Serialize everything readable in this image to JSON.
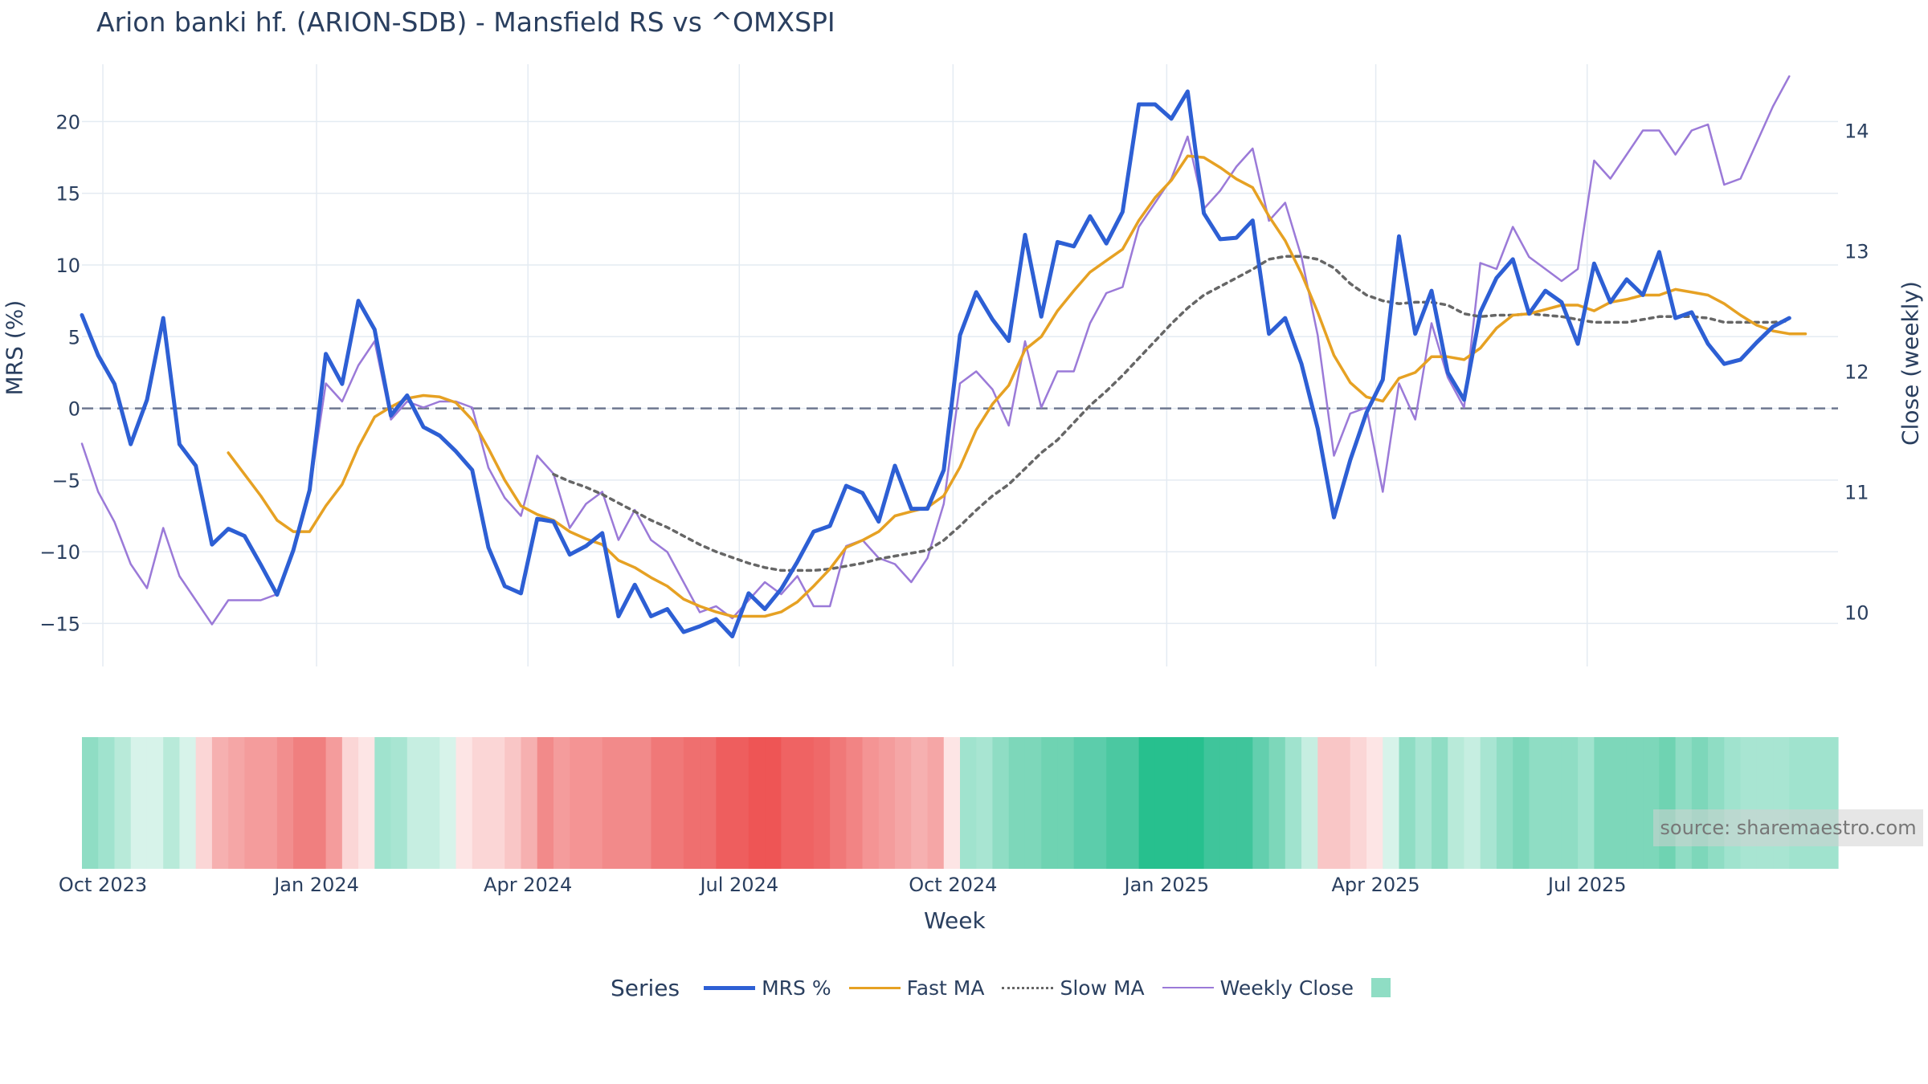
{
  "chart_data": {
    "type": "line",
    "title": "Arion banki hf. (ARION-SDB) - Mansfield RS vs ^OMXSPI",
    "xlabel": "Week",
    "ylabel_left": "MRS (%)",
    "ylabel_right": "Close (weekly)",
    "source": "source: sharemaestro.com",
    "legend_title": "Series",
    "ylim_left": [
      -18,
      24
    ],
    "ylim_right": [
      9.55,
      14.55
    ],
    "y_ticks_left": [
      -15,
      -10,
      -5,
      0,
      5,
      10,
      15,
      20
    ],
    "y_tick_labels_left": [
      "−15",
      "−10",
      "−5",
      "0",
      "5",
      "10",
      "15",
      "20"
    ],
    "y_ticks_right": [
      10,
      11,
      12,
      13,
      14
    ],
    "y_tick_labels_right": [
      "10",
      "11",
      "12",
      "13",
      "14"
    ],
    "x_start": "2023-09-22",
    "x_end": "2025-10-10",
    "x_ticks": [
      "2023-10-01",
      "2024-01-01",
      "2024-04-01",
      "2024-07-01",
      "2024-10-01",
      "2025-01-01",
      "2025-04-01",
      "2025-07-01"
    ],
    "x_tick_labels": [
      "Oct 2023",
      "Jan 2024",
      "Apr 2024",
      "Jul 2024",
      "Oct 2024",
      "Jan 2025",
      "Apr 2025",
      "Jul 2025"
    ],
    "reference_line": 0,
    "colors": {
      "mrs": "#2d5fd4",
      "fast": "#e6a123",
      "slow": "#666666",
      "close": "#9b7ad8",
      "zero": "#6e7890",
      "grid": "#e4ebf2",
      "pos": "#27c08e",
      "neg": "#ee5555"
    },
    "series": [
      {
        "name": "MRS %",
        "values": [
          6.5,
          3.7,
          1.7,
          -2.5,
          0.6,
          6.3,
          -2.5,
          -4.0,
          -9.5,
          -8.4,
          -8.9,
          -10.9,
          -13.0,
          -9.9,
          -5.7,
          3.8,
          1.7,
          7.5,
          5.5,
          -0.5,
          0.9,
          -1.3,
          -1.9,
          -3.0,
          -4.3,
          -9.7,
          -12.4,
          -12.9,
          -7.7,
          -7.9,
          -10.2,
          -9.6,
          -8.7,
          -14.5,
          -12.3,
          -14.5,
          -14.0,
          -15.6,
          -15.2,
          -14.7,
          -15.9,
          -12.9,
          -14.0,
          -12.6,
          -10.7,
          -8.6,
          -8.2,
          -5.4,
          -5.9,
          -7.9,
          -4.0,
          -7.0,
          -7.0,
          -4.3,
          5.1,
          8.1,
          6.2,
          4.7,
          12.1,
          6.4,
          11.6,
          11.3,
          13.4,
          11.5,
          13.7,
          21.2,
          21.2,
          20.2,
          22.1,
          13.6,
          11.8,
          11.9,
          13.1,
          5.2,
          6.3,
          3.1,
          -1.4,
          -7.6,
          -3.6,
          -0.3,
          2.0,
          12.0,
          5.2,
          8.2,
          2.5,
          0.6,
          6.7,
          9.1,
          10.4,
          6.6,
          8.2,
          7.4,
          4.5,
          10.1,
          7.4,
          9.0,
          7.9,
          10.9,
          6.3,
          6.7,
          4.5,
          3.1,
          3.4,
          4.6,
          5.7,
          6.3
        ]
      },
      {
        "name": "Fast MA",
        "values": [
          null,
          null,
          null,
          null,
          null,
          null,
          null,
          null,
          null,
          -3.1,
          -4.6,
          -6.1,
          -7.8,
          -8.6,
          -8.6,
          -6.8,
          -5.3,
          -2.7,
          -0.6,
          0.1,
          0.7,
          0.9,
          0.8,
          0.4,
          -0.8,
          -2.8,
          -5.0,
          -6.8,
          -7.4,
          -7.8,
          -8.6,
          -9.1,
          -9.5,
          -10.6,
          -11.1,
          -11.8,
          -12.4,
          -13.3,
          -13.8,
          -14.2,
          -14.5,
          -14.5,
          -14.5,
          -14.2,
          -13.5,
          -12.4,
          -11.2,
          -9.7,
          -9.2,
          -8.6,
          -7.5,
          -7.2,
          -6.9,
          -6.1,
          -4.1,
          -1.5,
          0.3,
          1.6,
          4.1,
          5.0,
          6.8,
          8.2,
          9.5,
          10.3,
          11.1,
          13.1,
          14.7,
          15.9,
          17.6,
          17.5,
          16.8,
          16.0,
          15.4,
          13.4,
          11.7,
          9.4,
          6.7,
          3.7,
          1.8,
          0.8,
          0.5,
          2.1,
          2.5,
          3.6,
          3.6,
          3.4,
          4.2,
          5.6,
          6.5,
          6.6,
          6.9,
          7.2,
          7.2,
          6.8,
          7.4,
          7.6,
          7.9,
          7.9,
          8.3,
          8.1,
          7.9,
          7.3,
          6.5,
          5.8,
          5.4,
          5.2,
          5.2
        ]
      },
      {
        "name": "Slow MA",
        "values": [
          null,
          null,
          null,
          null,
          null,
          null,
          null,
          null,
          null,
          null,
          null,
          null,
          null,
          null,
          null,
          null,
          null,
          null,
          null,
          null,
          null,
          null,
          null,
          null,
          null,
          null,
          null,
          null,
          null,
          -4.6,
          -5.1,
          -5.5,
          -6.0,
          -6.6,
          -7.2,
          -7.8,
          -8.3,
          -8.9,
          -9.5,
          -10.0,
          -10.4,
          -10.8,
          -11.1,
          -11.3,
          -11.3,
          -11.3,
          -11.2,
          -11.0,
          -10.8,
          -10.5,
          -10.3,
          -10.1,
          -9.9,
          -9.2,
          -8.2,
          -7.1,
          -6.1,
          -5.3,
          -4.2,
          -3.1,
          -2.2,
          -1.0,
          0.2,
          1.2,
          2.3,
          3.5,
          4.7,
          5.9,
          7.0,
          7.9,
          8.5,
          9.1,
          9.7,
          10.4,
          10.6,
          10.6,
          10.4,
          9.8,
          8.7,
          7.9,
          7.5,
          7.3,
          7.4,
          7.4,
          7.2,
          6.6,
          6.4,
          6.5,
          6.5,
          6.6,
          6.5,
          6.4,
          6.2,
          6.0,
          6.0,
          6.0,
          6.2,
          6.4,
          6.4,
          6.4,
          6.3,
          6.0,
          6.0,
          6.0,
          6.0,
          6.1
        ]
      },
      {
        "name": "Weekly Close",
        "values": [
          11.4,
          11.0,
          10.75,
          10.4,
          10.2,
          10.7,
          10.3,
          10.1,
          9.9,
          10.1,
          10.1,
          10.1,
          10.15,
          10.5,
          11.0,
          11.9,
          11.75,
          12.05,
          12.25,
          11.6,
          11.75,
          11.7,
          11.75,
          11.75,
          11.7,
          11.2,
          10.95,
          10.8,
          11.3,
          11.15,
          10.7,
          10.9,
          11.0,
          10.6,
          10.85,
          10.6,
          10.5,
          10.25,
          10.0,
          10.05,
          9.95,
          10.1,
          10.25,
          10.15,
          10.3,
          10.05,
          10.05,
          10.55,
          10.6,
          10.45,
          10.4,
          10.25,
          10.45,
          10.9,
          11.9,
          12.0,
          11.85,
          11.55,
          12.25,
          11.7,
          12.0,
          12.0,
          12.4,
          12.65,
          12.7,
          13.2,
          13.4,
          13.6,
          13.95,
          13.35,
          13.5,
          13.7,
          13.85,
          13.25,
          13.4,
          12.95,
          12.3,
          11.3,
          11.65,
          11.7,
          11.0,
          11.9,
          11.6,
          12.4,
          11.95,
          11.7,
          12.9,
          12.85,
          13.2,
          12.95,
          12.85,
          12.75,
          12.85,
          13.75,
          13.6,
          13.8,
          14.0,
          14.0,
          13.8,
          14.0,
          14.05,
          13.55,
          13.6,
          13.9,
          14.2,
          14.45
        ]
      }
    ],
    "heatmap_cells": [
      {
        "start": "2023-09-22",
        "color": "#8fddc4"
      },
      {
        "start": "2023-09-29",
        "color": "#a0e3ce"
      },
      {
        "start": "2023-10-06",
        "color": "#b8ead9"
      },
      {
        "start": "2023-10-13",
        "color": "#d7f3ea"
      },
      {
        "start": "2023-10-20",
        "color": "#d7f3ea"
      },
      {
        "start": "2023-10-27",
        "color": "#b8ead9"
      },
      {
        "start": "2023-11-03",
        "color": "#d7f3ea"
      },
      {
        "start": "2023-11-10",
        "color": "#fbd6d6"
      },
      {
        "start": "2023-11-17",
        "color": "#f6b0b0"
      },
      {
        "start": "2023-11-24",
        "color": "#f5a6a6"
      },
      {
        "start": "2023-12-01",
        "color": "#f49c9c"
      },
      {
        "start": "2023-12-08",
        "color": "#f49c9c"
      },
      {
        "start": "2023-12-15",
        "color": "#f28e8e"
      },
      {
        "start": "2023-12-22",
        "color": "#f07f7f"
      },
      {
        "start": "2023-12-29",
        "color": "#f07f7f"
      },
      {
        "start": "2024-01-05",
        "color": "#f49c9c"
      },
      {
        "start": "2024-01-12",
        "color": "#fbd6d6"
      },
      {
        "start": "2024-01-19",
        "color": "#fde5e5"
      },
      {
        "start": "2024-01-26",
        "color": "#a0e3ce"
      },
      {
        "start": "2024-02-02",
        "color": "#a8e5d2"
      },
      {
        "start": "2024-02-09",
        "color": "#c6eee1"
      },
      {
        "start": "2024-02-16",
        "color": "#c6eee1"
      },
      {
        "start": "2024-02-23",
        "color": "#d7f3ea"
      },
      {
        "start": "2024-03-01",
        "color": "#fde5e5"
      },
      {
        "start": "2024-03-08",
        "color": "#fbd6d6"
      },
      {
        "start": "2024-03-15",
        "color": "#fbd6d6"
      },
      {
        "start": "2024-03-22",
        "color": "#f9c6c6"
      },
      {
        "start": "2024-03-29",
        "color": "#f6b0b0"
      },
      {
        "start": "2024-04-05",
        "color": "#f28a8a"
      },
      {
        "start": "2024-04-12",
        "color": "#f49c9c"
      },
      {
        "start": "2024-04-19",
        "color": "#f49494"
      },
      {
        "start": "2024-04-26",
        "color": "#f49494"
      },
      {
        "start": "2024-05-03",
        "color": "#f28a8a"
      },
      {
        "start": "2024-05-10",
        "color": "#f28a8a"
      },
      {
        "start": "2024-05-17",
        "color": "#f28a8a"
      },
      {
        "start": "2024-05-24",
        "color": "#f07878"
      },
      {
        "start": "2024-05-31",
        "color": "#f07878"
      },
      {
        "start": "2024-06-07",
        "color": "#ef6f6f"
      },
      {
        "start": "2024-06-14",
        "color": "#ef6f6f"
      },
      {
        "start": "2024-06-21",
        "color": "#ee5e5e"
      },
      {
        "start": "2024-06-28",
        "color": "#ee5e5e"
      },
      {
        "start": "2024-07-05",
        "color": "#ee5555"
      },
      {
        "start": "2024-07-12",
        "color": "#ee5555"
      },
      {
        "start": "2024-07-19",
        "color": "#ef6363"
      },
      {
        "start": "2024-07-26",
        "color": "#ef6363"
      },
      {
        "start": "2024-08-02",
        "color": "#ef6969"
      },
      {
        "start": "2024-08-09",
        "color": "#f07878"
      },
      {
        "start": "2024-08-16",
        "color": "#f28484"
      },
      {
        "start": "2024-08-23",
        "color": "#f49494"
      },
      {
        "start": "2024-08-30",
        "color": "#f49c9c"
      },
      {
        "start": "2024-09-06",
        "color": "#f5a6a6"
      },
      {
        "start": "2024-09-13",
        "color": "#f6b0b0"
      },
      {
        "start": "2024-09-20",
        "color": "#f5a6a6"
      },
      {
        "start": "2024-09-27",
        "color": "#fde5e5"
      },
      {
        "start": "2024-10-04",
        "color": "#a0e3ce"
      },
      {
        "start": "2024-10-11",
        "color": "#a8e5d2"
      },
      {
        "start": "2024-10-18",
        "color": "#8fddc4"
      },
      {
        "start": "2024-10-25",
        "color": "#7dd7ba"
      },
      {
        "start": "2024-11-01",
        "color": "#7dd7ba"
      },
      {
        "start": "2024-11-08",
        "color": "#6fd3b2"
      },
      {
        "start": "2024-11-15",
        "color": "#6fd3b2"
      },
      {
        "start": "2024-11-22",
        "color": "#5ccdab"
      },
      {
        "start": "2024-11-29",
        "color": "#5ccdab"
      },
      {
        "start": "2024-12-06",
        "color": "#4bc8a1"
      },
      {
        "start": "2024-12-13",
        "color": "#4bc8a1"
      },
      {
        "start": "2024-12-20",
        "color": "#27c08e"
      },
      {
        "start": "2024-12-27",
        "color": "#27c08e"
      },
      {
        "start": "2025-01-03",
        "color": "#27c08e"
      },
      {
        "start": "2025-01-10",
        "color": "#27c08e"
      },
      {
        "start": "2025-01-17",
        "color": "#3fc59b"
      },
      {
        "start": "2025-01-24",
        "color": "#3fc59b"
      },
      {
        "start": "2025-01-31",
        "color": "#3fc59b"
      },
      {
        "start": "2025-02-07",
        "color": "#63cfae"
      },
      {
        "start": "2025-02-14",
        "color": "#7dd7ba"
      },
      {
        "start": "2025-02-21",
        "color": "#a0e3ce"
      },
      {
        "start": "2025-02-28",
        "color": "#c6eee1"
      },
      {
        "start": "2025-03-07",
        "color": "#f9c6c6"
      },
      {
        "start": "2025-03-14",
        "color": "#f9c6c6"
      },
      {
        "start": "2025-03-21",
        "color": "#fbd6d6"
      },
      {
        "start": "2025-03-28",
        "color": "#fde5e5"
      },
      {
        "start": "2025-04-04",
        "color": "#d7f3ea"
      },
      {
        "start": "2025-04-11",
        "color": "#8fddc4"
      },
      {
        "start": "2025-04-18",
        "color": "#a8e5d2"
      },
      {
        "start": "2025-04-25",
        "color": "#8fddc4"
      },
      {
        "start": "2025-05-02",
        "color": "#b8ead9"
      },
      {
        "start": "2025-05-09",
        "color": "#c6eee1"
      },
      {
        "start": "2025-05-16",
        "color": "#a8e5d2"
      },
      {
        "start": "2025-05-23",
        "color": "#8fddc4"
      },
      {
        "start": "2025-05-30",
        "color": "#7dd7ba"
      },
      {
        "start": "2025-06-06",
        "color": "#8fddc4"
      },
      {
        "start": "2025-06-13",
        "color": "#8fddc4"
      },
      {
        "start": "2025-06-20",
        "color": "#8fddc4"
      },
      {
        "start": "2025-06-27",
        "color": "#a0e3ce"
      },
      {
        "start": "2025-07-04",
        "color": "#7dd7ba"
      },
      {
        "start": "2025-07-11",
        "color": "#7dd7ba"
      },
      {
        "start": "2025-07-18",
        "color": "#7dd7ba"
      },
      {
        "start": "2025-07-25",
        "color": "#7dd7ba"
      },
      {
        "start": "2025-08-01",
        "color": "#6fd3b2"
      },
      {
        "start": "2025-08-08",
        "color": "#8fddc4"
      },
      {
        "start": "2025-08-15",
        "color": "#7dd7ba"
      },
      {
        "start": "2025-08-22",
        "color": "#8fddc4"
      },
      {
        "start": "2025-08-29",
        "color": "#a0e3ce"
      },
      {
        "start": "2025-09-05",
        "color": "#a8e5d2"
      },
      {
        "start": "2025-09-12",
        "color": "#a8e5d2"
      },
      {
        "start": "2025-09-19",
        "color": "#a8e5d2"
      },
      {
        "start": "2025-09-26",
        "color": "#a0e3ce"
      },
      {
        "start": "2025-10-03",
        "color": "#a0e3ce"
      }
    ]
  },
  "legend": {
    "title": "Series",
    "items": [
      {
        "name": "MRS %",
        "style": "solid-thick",
        "color": "#2d5fd4"
      },
      {
        "name": "Fast MA",
        "style": "solid",
        "color": "#e6a123"
      },
      {
        "name": "Slow MA",
        "style": "dotted",
        "color": "#666666"
      },
      {
        "name": "Weekly Close",
        "style": "solid-thin",
        "color": "#9b7ad8"
      },
      {
        "name": "",
        "style": "box",
        "color": "#8fddc4"
      }
    ]
  }
}
